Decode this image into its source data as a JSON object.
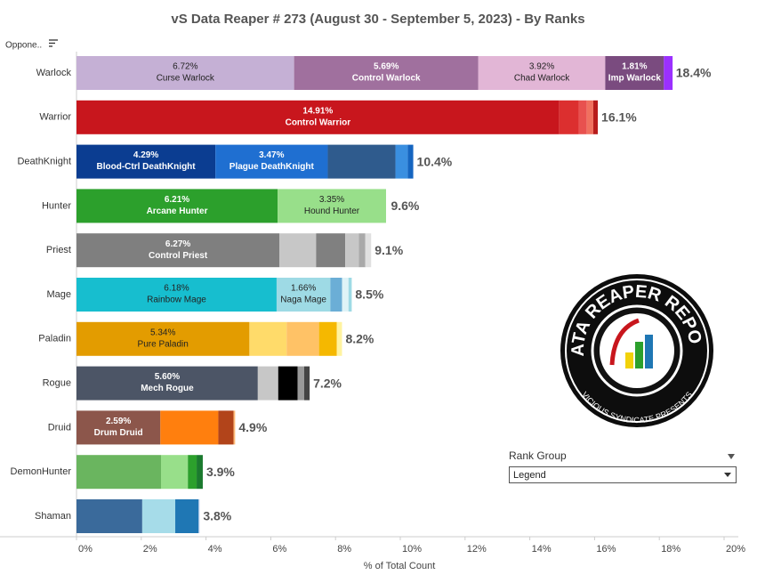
{
  "chart_data": {
    "type": "stacked-bar-h",
    "title": "vS Data Reaper #  273 (August 30 - September 5, 2023) - By Ranks",
    "x_label": "% of Total Count",
    "xlim": [
      0,
      20
    ],
    "xticks": [
      {
        "value": 0,
        "label": "0%"
      },
      {
        "value": 2,
        "label": "2%"
      },
      {
        "value": 4,
        "label": "4%"
      },
      {
        "value": 6,
        "label": "6%"
      },
      {
        "value": 8,
        "label": "8%"
      },
      {
        "value": 10,
        "label": "10%"
      },
      {
        "value": 12,
        "label": "12%"
      },
      {
        "value": 14,
        "label": "14%"
      },
      {
        "value": 16,
        "label": "16%"
      },
      {
        "value": 18,
        "label": "18%"
      },
      {
        "value": 20,
        "label": "20%"
      }
    ],
    "categories": [
      "Warlock",
      "Warrior",
      "DeathKnight",
      "Hunter",
      "Priest",
      "Mage",
      "Paladin",
      "Rogue",
      "Druid",
      "DemonHunter",
      "Shaman"
    ],
    "totals": [
      18.4,
      16.1,
      10.4,
      9.6,
      9.1,
      8.5,
      8.2,
      7.2,
      4.9,
      3.9,
      3.8
    ],
    "total_labels": [
      "18.4%",
      "16.1%",
      "10.4%",
      "9.6%",
      "9.1%",
      "8.5%",
      "8.2%",
      "7.2%",
      "4.9%",
      "3.9%",
      "3.8%"
    ],
    "segments": [
      [
        {
          "value": 6.72,
          "value_label": "6.72%",
          "name": "Curse Warlock",
          "color": "#c5b0d5"
        },
        {
          "value": 5.69,
          "value_label": "5.69%",
          "name": "Control Warlock",
          "color": "#a0709e"
        },
        {
          "value": 3.92,
          "value_label": "3.92%",
          "name": "Chad Warlock",
          "color": "#e2b6d6"
        },
        {
          "value": 1.81,
          "value_label": "1.81%",
          "name": "Imp Warlock",
          "color": "#7a4b7f"
        },
        {
          "value": 0.27,
          "color": "#9b30ff"
        }
      ],
      [
        {
          "value": 14.91,
          "value_label": "14.91%",
          "name": "Control Warrior",
          "color": "#c8161d"
        },
        {
          "value": 0.6,
          "color": "#dc2f2f"
        },
        {
          "value": 0.25,
          "color": "#e8514f"
        },
        {
          "value": 0.2,
          "color": "#f0705f"
        },
        {
          "value": 0.14,
          "color": "#b71c1c"
        }
      ],
      [
        {
          "value": 4.29,
          "value_label": "4.29%",
          "name": "Blood-Ctrl DeathKnight",
          "color": "#0b3d91"
        },
        {
          "value": 3.47,
          "value_label": "3.47%",
          "name": "Plague DeathKnight",
          "color": "#1f6fd1"
        },
        {
          "value": 2.09,
          "color": "#2f5b8d"
        },
        {
          "value": 0.38,
          "color": "#3a8fe0"
        },
        {
          "value": 0.17,
          "color": "#1565c0"
        }
      ],
      [
        {
          "value": 6.21,
          "value_label": "6.21%",
          "name": "Arcane Hunter",
          "color": "#2ca02c"
        },
        {
          "value": 3.35,
          "value_label": "3.35%",
          "name": "Hound Hunter",
          "color": "#98df8a"
        }
      ],
      [
        {
          "value": 6.27,
          "value_label": "6.27%",
          "name": "Control Priest",
          "color": "#7f7f7f"
        },
        {
          "value": 1.13,
          "color": "#c7c7c7"
        },
        {
          "value": 0.9,
          "color": "#808080"
        },
        {
          "value": 0.42,
          "color": "#c7c7c7"
        },
        {
          "value": 0.2,
          "color": "#a9a9a9"
        },
        {
          "value": 0.18,
          "color": "#e0e0e0"
        }
      ],
      [
        {
          "value": 6.18,
          "value_label": "6.18%",
          "name": "Rainbow Mage",
          "color": "#17becf"
        },
        {
          "value": 1.66,
          "value_label": "1.66%",
          "name": "Naga Mage",
          "color": "#9edae5"
        },
        {
          "value": 0.36,
          "color": "#6baed6"
        },
        {
          "value": 0.2,
          "color": "#dff3f7"
        },
        {
          "value": 0.1,
          "color": "#9edae5"
        }
      ],
      [
        {
          "value": 5.34,
          "value_label": "5.34%",
          "name": "Pure Paladin",
          "color": "#e39c00"
        },
        {
          "value": 1.15,
          "color": "#ffdb6a"
        },
        {
          "value": 1.0,
          "color": "#ffc266"
        },
        {
          "value": 0.55,
          "color": "#f5b800"
        },
        {
          "value": 0.16,
          "color": "#fff3a0"
        }
      ],
      [
        {
          "value": 5.6,
          "value_label": "5.60%",
          "name": "Mech Rogue",
          "color": "#4c5566"
        },
        {
          "value": 0.63,
          "color": "#c7c7c7"
        },
        {
          "value": 0.6,
          "color": "#000000"
        },
        {
          "value": 0.2,
          "color": "#999999"
        },
        {
          "value": 0.17,
          "color": "#444444"
        }
      ],
      [
        {
          "value": 2.59,
          "value_label": "2.59%",
          "name": "Drum Druid",
          "color": "#8c564b"
        },
        {
          "value": 1.79,
          "color": "#ff7f0e"
        },
        {
          "value": 0.47,
          "color": "#b2441a"
        },
        {
          "value": 0.05,
          "color": "#ffbb78"
        }
      ],
      [
        {
          "value": 2.61,
          "color": "#6ab55f"
        },
        {
          "value": 0.83,
          "color": "#98df8a"
        },
        {
          "value": 0.27,
          "color": "#2ca02c"
        },
        {
          "value": 0.19,
          "color": "#1b7a2e"
        }
      ],
      [
        {
          "value": 2.03,
          "color": "#3a6a9b"
        },
        {
          "value": 1.02,
          "color": "#a6dce9"
        },
        {
          "value": 0.72,
          "color": "#1f77b4"
        },
        {
          "value": 0.03,
          "color": "#aec7e8"
        }
      ]
    ]
  },
  "toolbar": "Oppone..",
  "filter": {
    "title": "Rank Group",
    "value": "Legend"
  },
  "logo": {
    "title": "DATA REAPER REPORT",
    "subtitle": "VICIOUS SYNDICATE PRESENTS"
  }
}
